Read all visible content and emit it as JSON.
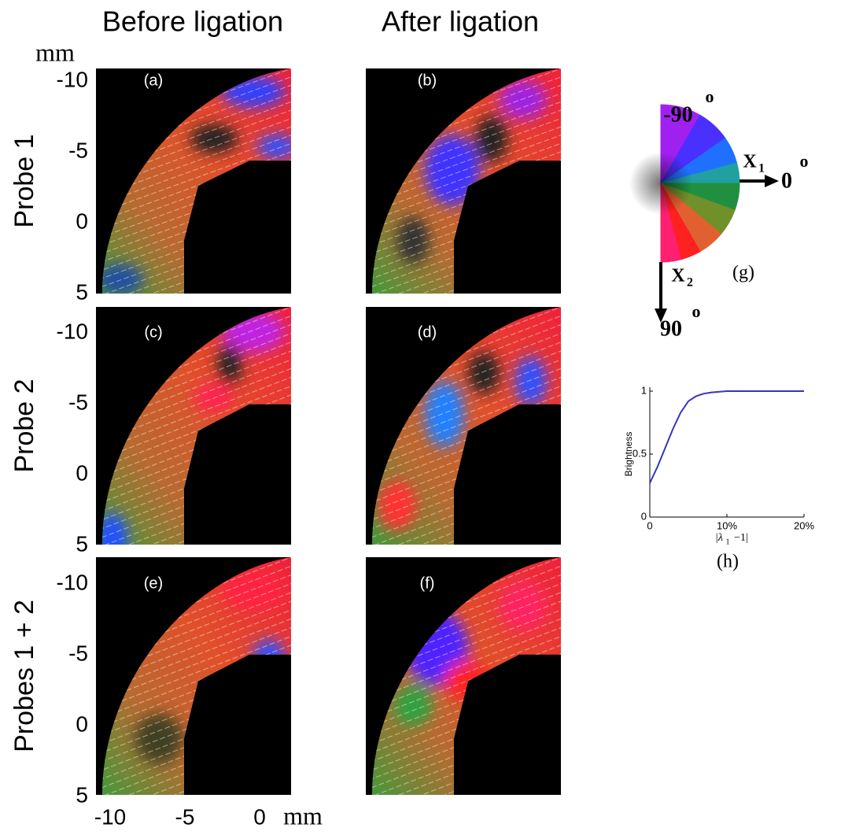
{
  "columns": [
    "Before ligation",
    "After ligation"
  ],
  "rows": [
    "Probe 1",
    "Probe 2",
    "Probes 1 + 2"
  ],
  "panels": [
    "(a)",
    "(b)",
    "(c)",
    "(d)",
    "(e)",
    "(f)"
  ],
  "y_axis": {
    "unit": "mm",
    "ticks": [
      -10,
      -5,
      0,
      5
    ]
  },
  "x_axis": {
    "unit": "mm",
    "ticks": [
      -10,
      -5,
      0
    ]
  },
  "orientation_key": {
    "label": "(g)",
    "top": "-90",
    "right": "0",
    "bottom": "90",
    "degree": "o",
    "x1": "X",
    "x1_sub": "1",
    "x2": "X",
    "x2_sub": "2"
  },
  "chart_data": {
    "type": "line",
    "label": "(h)",
    "ylabel": "Brightness",
    "xlabel": "|λ",
    "xlabel_sub": "1",
    "xlabel_end": "−1|",
    "x": [
      0,
      1,
      2,
      3,
      4,
      5,
      6,
      7,
      8,
      10,
      12,
      14,
      16,
      18,
      20
    ],
    "values": [
      0.27,
      0.4,
      0.55,
      0.7,
      0.83,
      0.92,
      0.96,
      0.98,
      0.99,
      1,
      1,
      1,
      1,
      1,
      1
    ],
    "color": "#3535c0",
    "xlim": [
      0,
      20
    ],
    "xticks": [
      0,
      {
        "value": 10,
        "label": "10%"
      },
      {
        "value": 20,
        "label": "20%"
      }
    ],
    "ylim": [
      0,
      1
    ],
    "yticks": [
      0,
      0.5,
      1
    ]
  }
}
